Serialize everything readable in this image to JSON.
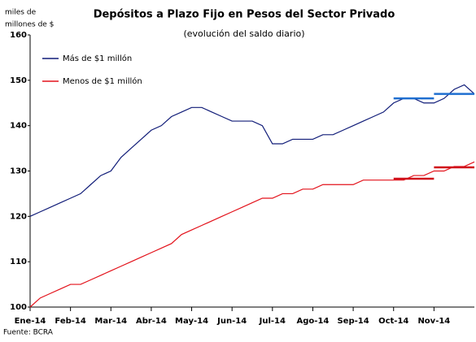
{
  "chart_data": {
    "type": "line",
    "title": "Depósitos a Plazo Fijo en Pesos del Sector Privado",
    "subtitle": "(evolución del saldo diario)",
    "y_label": [
      "miles de",
      "millones de $"
    ],
    "source": "Fuente: BCRA",
    "categories": [
      "Ene-14",
      null,
      null,
      null,
      "Feb-14",
      null,
      null,
      null,
      "Mar-14",
      null,
      null,
      null,
      "Abr-14",
      null,
      null,
      null,
      "May-14",
      null,
      null,
      null,
      "Jun-14",
      null,
      null,
      null,
      "Jul-14",
      null,
      null,
      null,
      "Ago-14",
      null,
      null,
      null,
      "Sep-14",
      null,
      null,
      null,
      "Oct-14",
      null,
      null,
      null,
      "Nov-14",
      null,
      null,
      null,
      null
    ],
    "series": [
      {
        "name": "Más de $1 millón",
        "color": "#101c78",
        "values": [
          120,
          121,
          122,
          123,
          124,
          125,
          127,
          129,
          130,
          133,
          135,
          137,
          139,
          140,
          142,
          143,
          144,
          144,
          143,
          142,
          141,
          141,
          141,
          140,
          136,
          136,
          137,
          137,
          137,
          138,
          138,
          139,
          140,
          141,
          142,
          143,
          145,
          146,
          146,
          145,
          145,
          146,
          148,
          149,
          147
        ]
      },
      {
        "name": "Menos de $1 millón",
        "color": "#e3121b",
        "values": [
          100,
          102,
          103,
          104,
          105,
          105,
          106,
          107,
          108,
          109,
          110,
          111,
          112,
          113,
          114,
          116,
          117,
          118,
          119,
          120,
          121,
          122,
          123,
          124,
          124,
          125,
          125,
          126,
          126,
          127,
          127,
          127,
          127,
          128,
          128,
          128,
          128,
          128,
          129,
          129,
          130,
          130,
          131,
          131,
          132
        ]
      },
      {
        "color": "#1f6fd0",
        "values": [
          null,
          null,
          null,
          null,
          null,
          null,
          null,
          null,
          null,
          null,
          null,
          null,
          null,
          null,
          null,
          null,
          null,
          null,
          null,
          null,
          null,
          null,
          null,
          null,
          null,
          null,
          null,
          null,
          null,
          null,
          null,
          null,
          null,
          null,
          null,
          null,
          146,
          146,
          146,
          146,
          146,
          null,
          null,
          null,
          null
        ]
      },
      {
        "color": "#1f6fd0",
        "values": [
          null,
          null,
          null,
          null,
          null,
          null,
          null,
          null,
          null,
          null,
          null,
          null,
          null,
          null,
          null,
          null,
          null,
          null,
          null,
          null,
          null,
          null,
          null,
          null,
          null,
          null,
          null,
          null,
          null,
          null,
          null,
          null,
          null,
          null,
          null,
          null,
          null,
          null,
          null,
          null,
          147,
          147,
          147,
          147,
          147
        ]
      },
      {
        "color": "#d0101a",
        "values": [
          null,
          null,
          null,
          null,
          null,
          null,
          null,
          null,
          null,
          null,
          null,
          null,
          null,
          null,
          null,
          null,
          null,
          null,
          null,
          null,
          null,
          null,
          null,
          null,
          null,
          null,
          null,
          null,
          null,
          null,
          null,
          null,
          null,
          null,
          null,
          null,
          128.3,
          128.3,
          128.3,
          128.3,
          128.3,
          null,
          null,
          null,
          null
        ]
      },
      {
        "color": "#d0101a",
        "values": [
          null,
          null,
          null,
          null,
          null,
          null,
          null,
          null,
          null,
          null,
          null,
          null,
          null,
          null,
          null,
          null,
          null,
          null,
          null,
          null,
          null,
          null,
          null,
          null,
          null,
          null,
          null,
          null,
          null,
          null,
          null,
          null,
          null,
          null,
          null,
          null,
          null,
          null,
          null,
          null,
          130.8,
          130.8,
          130.8,
          130.8,
          130.8
        ]
      }
    ],
    "ylim": [
      100,
      160
    ],
    "yticks": [
      100,
      110,
      120,
      130,
      140,
      150,
      160
    ],
    "legend": "upper left"
  }
}
